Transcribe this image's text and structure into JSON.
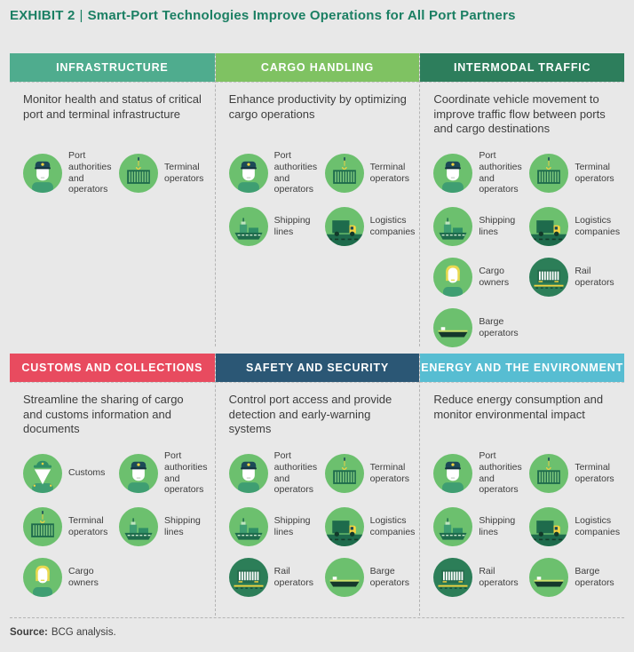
{
  "title": {
    "exhibit_label": "EXHIBIT 2",
    "separator": "|",
    "text": "Smart-Port Technologies Improve Operations for All Port Partners"
  },
  "source": {
    "label": "Source:",
    "text": "BCG analysis."
  },
  "colors": {
    "background": "#e8e8e8",
    "title_green": "#1b7f63",
    "body_text": "#3d3d3d",
    "dashed_line": "#b4b4b4",
    "icon_circle": "#6cc06e",
    "icon_circle_dark": "#2c7e58",
    "icon_dark_green": "#1e6b4c",
    "icon_mid_green": "#2f8f66",
    "icon_shoulder_green": "#3f9e72",
    "icon_stripe_green": "#7fca7f",
    "icon_navy": "#1d4a57",
    "icon_yellow": "#f3d340",
    "icon_hair_yellow": "#e9d94f",
    "icon_hull_dark": "#15382b",
    "icon_deck_lime": "#cfe06a"
  },
  "stakeholder_types": {
    "port-authorities": {
      "label": "Port authorities and operators",
      "icon": "port-authority-icon"
    },
    "terminal": {
      "label": "Terminal operators",
      "icon": "terminal-crane-icon"
    },
    "shipping": {
      "label": "Shipping lines",
      "icon": "cargo-ship-icon"
    },
    "logistics": {
      "label": "Logistics companies",
      "icon": "truck-icon"
    },
    "cargo-owners": {
      "label": "Cargo owners",
      "icon": "cargo-owner-person-icon"
    },
    "rail": {
      "label": "Rail operators",
      "icon": "rail-car-icon"
    },
    "barge": {
      "label": "Barge operators",
      "icon": "barge-icon"
    },
    "customs": {
      "label": "Customs",
      "icon": "customs-officer-icon"
    }
  },
  "panels": [
    {
      "id": "infrastructure",
      "title": "INFRASTRUCTURE",
      "header_color": "#4fac8e",
      "description": "Monitor health and status of critical port and terminal infrastructure",
      "stakeholders": [
        "port-authorities",
        "terminal"
      ]
    },
    {
      "id": "cargo-handling",
      "title": "CARGO HANDLING",
      "header_color": "#7fc262",
      "description": "Enhance productivity by optimizing cargo operations",
      "stakeholders": [
        "port-authorities",
        "terminal",
        "shipping",
        "logistics"
      ]
    },
    {
      "id": "intermodal-traffic",
      "title": "INTERMODAL TRAFFIC",
      "header_color": "#2d7e5c",
      "description": "Coordinate vehicle movement to improve traffic flow between ports and cargo destinations",
      "stakeholders": [
        "port-authorities",
        "terminal",
        "shipping",
        "logistics",
        "cargo-owners",
        "rail",
        "barge"
      ]
    },
    {
      "id": "customs-and-collections",
      "title": "CUSTOMS AND COLLECTIONS",
      "header_color": "#e84b5f",
      "description": "Streamline the sharing of cargo and customs information and documents",
      "stakeholders": [
        "customs",
        "port-authorities",
        "terminal",
        "shipping",
        "cargo-owners"
      ]
    },
    {
      "id": "safety-and-security",
      "title": "SAFETY AND SECURITY",
      "header_color": "#2b5775",
      "description": "Control port access and provide detection and early-warning systems",
      "stakeholders": [
        "port-authorities",
        "terminal",
        "shipping",
        "logistics",
        "rail",
        "barge"
      ]
    },
    {
      "id": "energy-and-environment",
      "title": "ENERGY AND THE ENVIRONMENT",
      "header_color": "#57bdd2",
      "description": "Reduce energy consumption and monitor environmental impact",
      "stakeholders": [
        "port-authorities",
        "terminal",
        "shipping",
        "logistics",
        "rail",
        "barge"
      ]
    }
  ]
}
